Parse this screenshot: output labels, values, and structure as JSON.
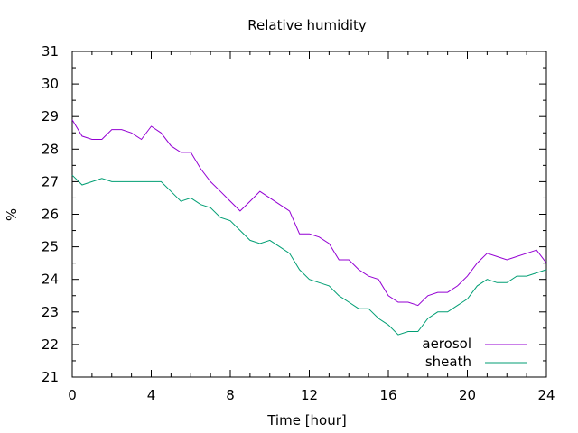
{
  "chart_data": {
    "type": "line",
    "title": "Relative humidity",
    "xlabel": "Time [hour]",
    "ylabel": "%",
    "xlim": [
      0,
      24
    ],
    "ylim": [
      21,
      31
    ],
    "xticks": [
      0,
      4,
      8,
      12,
      16,
      20,
      24
    ],
    "yticks": [
      21,
      22,
      23,
      24,
      25,
      26,
      27,
      28,
      29,
      30,
      31
    ],
    "x_minor_step": 1,
    "y_minor_step": 0.5,
    "grid": false,
    "legend_position": "bottom-right",
    "x": [
      0,
      0.5,
      1,
      1.5,
      2,
      2.5,
      3,
      3.5,
      4,
      4.5,
      5,
      5.5,
      6,
      6.5,
      7,
      7.5,
      8,
      8.5,
      9,
      9.5,
      10,
      10.5,
      11,
      11.5,
      12,
      12.5,
      13,
      13.5,
      14,
      14.5,
      15,
      15.5,
      16,
      16.5,
      17,
      17.5,
      18,
      18.5,
      19,
      19.5,
      20,
      20.5,
      21,
      21.5,
      22,
      22.5,
      23,
      23.5,
      24
    ],
    "series": [
      {
        "name": "aerosol",
        "color": "#9400d3",
        "values": [
          28.9,
          28.4,
          28.3,
          28.3,
          28.6,
          28.6,
          28.5,
          28.3,
          28.7,
          28.5,
          28.1,
          27.9,
          27.9,
          27.4,
          27.0,
          26.7,
          26.4,
          26.1,
          26.4,
          26.7,
          26.5,
          26.3,
          26.1,
          25.4,
          25.4,
          25.3,
          25.1,
          24.6,
          24.6,
          24.3,
          24.1,
          24.0,
          23.5,
          23.3,
          23.3,
          23.2,
          23.5,
          23.6,
          23.6,
          23.8,
          24.1,
          24.5,
          24.8,
          24.7,
          24.6,
          24.7,
          24.8,
          24.9,
          24.5
        ]
      },
      {
        "name": "sheath",
        "color": "#009e73",
        "values": [
          27.2,
          26.9,
          27.0,
          27.1,
          27.0,
          27.0,
          27.0,
          27.0,
          27.0,
          27.0,
          26.7,
          26.4,
          26.5,
          26.3,
          26.2,
          25.9,
          25.8,
          25.5,
          25.2,
          25.1,
          25.2,
          25.0,
          24.8,
          24.3,
          24.0,
          23.9,
          23.8,
          23.5,
          23.3,
          23.1,
          23.1,
          22.8,
          22.6,
          22.3,
          22.4,
          22.4,
          22.8,
          23.0,
          23.0,
          23.2,
          23.4,
          23.8,
          24.0,
          23.9,
          23.9,
          24.1,
          24.1,
          24.2,
          24.3
        ]
      }
    ]
  }
}
